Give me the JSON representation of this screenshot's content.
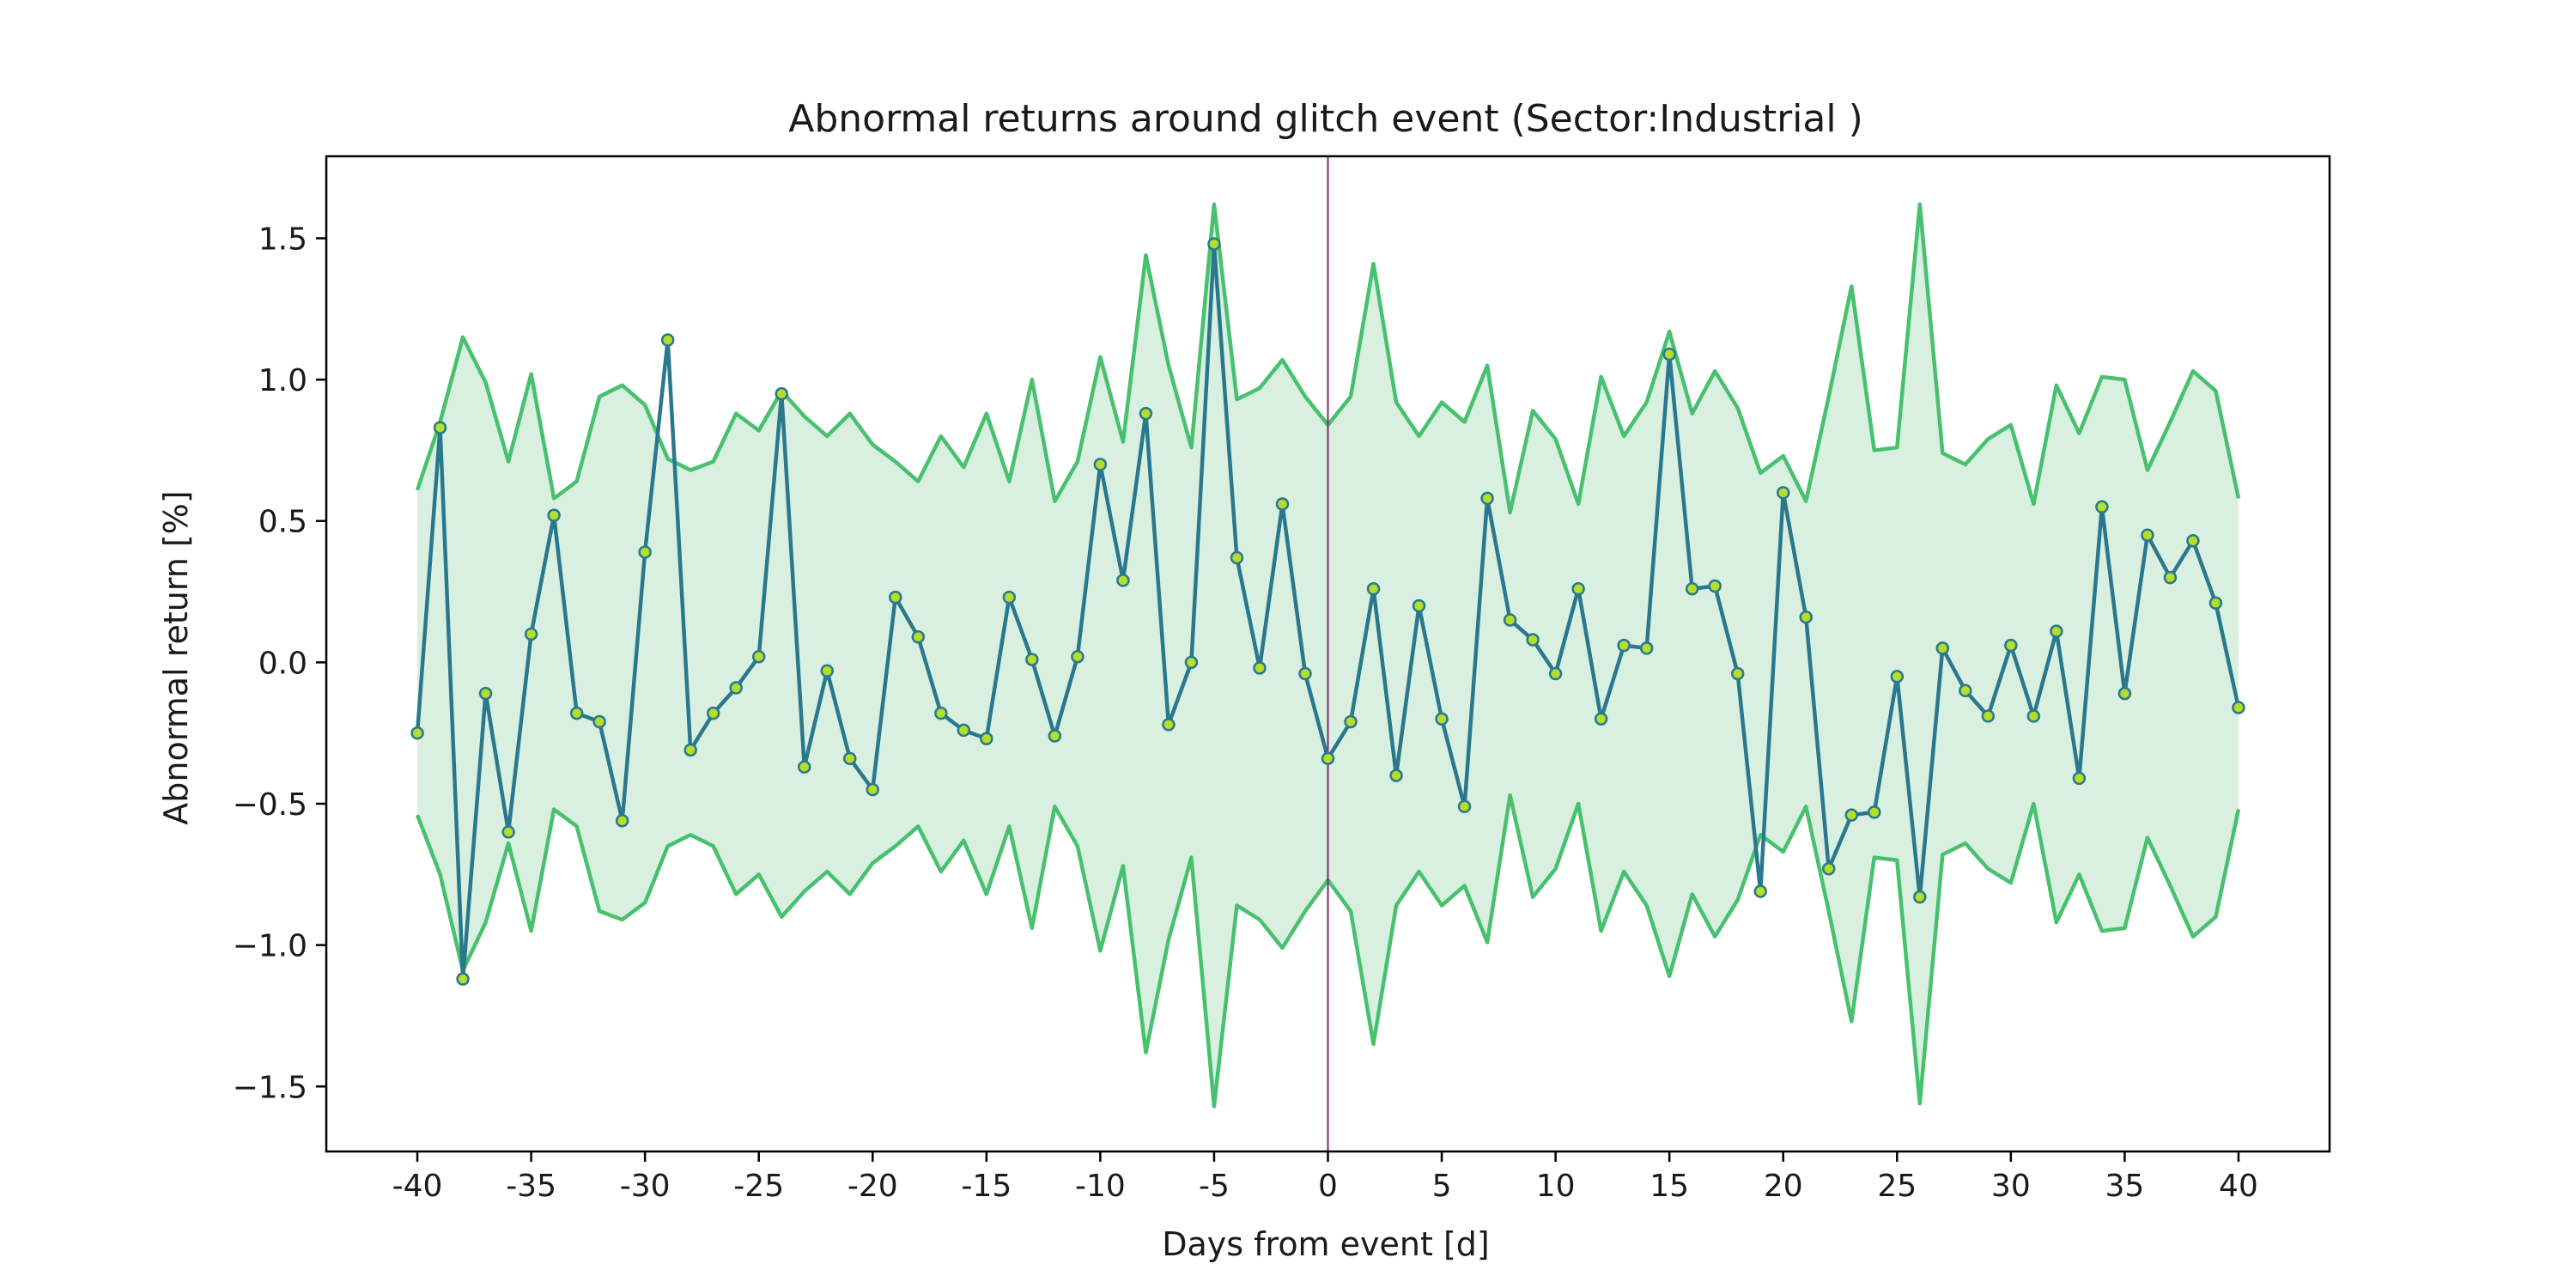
{
  "chart_data": {
    "type": "line",
    "title": "Abnormal returns around glitch event (Sector:Industrial )",
    "xlabel": "Days from event [d]",
    "ylabel": "Abnormal return [%]",
    "xlim": [
      -44,
      44
    ],
    "ylim": [
      -1.73,
      1.79
    ],
    "xticks": [
      -40,
      -35,
      -30,
      -25,
      -20,
      -15,
      -10,
      -5,
      0,
      5,
      10,
      15,
      20,
      25,
      30,
      35,
      40
    ],
    "yticks": [
      -1.5,
      -1.0,
      -0.5,
      0.0,
      0.5,
      1.0,
      1.5
    ],
    "grid": false,
    "event_line_x": 0,
    "x": [
      -40,
      -39,
      -38,
      -37,
      -36,
      -35,
      -34,
      -33,
      -32,
      -31,
      -30,
      -29,
      -28,
      -27,
      -26,
      -25,
      -24,
      -23,
      -22,
      -21,
      -20,
      -19,
      -18,
      -17,
      -16,
      -15,
      -14,
      -13,
      -12,
      -11,
      -10,
      -9,
      -8,
      -7,
      -6,
      -5,
      -4,
      -3,
      -2,
      -1,
      0,
      1,
      2,
      3,
      4,
      5,
      6,
      7,
      8,
      9,
      10,
      11,
      12,
      13,
      14,
      15,
      16,
      17,
      18,
      19,
      20,
      21,
      22,
      23,
      24,
      25,
      26,
      27,
      28,
      29,
      30,
      31,
      32,
      33,
      34,
      35,
      36,
      37,
      38,
      39,
      40
    ],
    "series": [
      {
        "type": "line",
        "values": [
          -0.25,
          0.83,
          -1.12,
          -0.11,
          -0.6,
          0.1,
          0.52,
          -0.18,
          -0.21,
          -0.56,
          0.39,
          1.14,
          -0.31,
          -0.18,
          -0.09,
          0.02,
          0.95,
          -0.37,
          -0.03,
          -0.34,
          -0.45,
          0.23,
          0.09,
          -0.18,
          -0.24,
          -0.27,
          0.23,
          0.01,
          -0.26,
          0.02,
          0.7,
          0.29,
          0.88,
          -0.22,
          0.0,
          1.48,
          0.37,
          -0.02,
          0.56,
          -0.04,
          -0.34,
          -0.21,
          0.26,
          -0.4,
          0.2,
          -0.2,
          -0.51,
          0.58,
          0.15,
          0.08,
          -0.04,
          0.26,
          -0.2,
          0.06,
          0.05,
          1.09,
          0.26,
          0.27,
          -0.04,
          -0.81,
          0.6,
          0.16,
          -0.73,
          -0.54,
          -0.53,
          -0.05,
          -0.83,
          0.05,
          -0.1,
          -0.19,
          0.06,
          -0.19,
          0.11,
          -0.41,
          0.55,
          -0.11,
          0.45,
          0.3,
          0.43,
          0.21,
          -0.16
        ],
        "color": "#2a788e",
        "marker_color": "#b5de2b"
      },
      {
        "type": "band",
        "upper": [
          0.61,
          0.85,
          1.15,
          0.99,
          0.71,
          1.02,
          0.58,
          0.64,
          0.94,
          0.98,
          0.91,
          0.72,
          0.68,
          0.71,
          0.88,
          0.82,
          0.96,
          0.87,
          0.8,
          0.88,
          0.77,
          0.71,
          0.64,
          0.8,
          0.69,
          0.88,
          0.64,
          1.0,
          0.57,
          0.71,
          1.08,
          0.78,
          1.44,
          1.05,
          0.76,
          1.62,
          0.93,
          0.97,
          1.07,
          0.94,
          0.84,
          0.94,
          1.41,
          0.92,
          0.8,
          0.92,
          0.85,
          1.05,
          0.53,
          0.89,
          0.79,
          0.56,
          1.01,
          0.8,
          0.92,
          1.17,
          0.88,
          1.03,
          0.9,
          0.67,
          0.73,
          0.57,
          0.94,
          1.33,
          0.75,
          0.76,
          1.62,
          0.74,
          0.7,
          0.79,
          0.84,
          0.56,
          0.98,
          0.81,
          1.01,
          1.0,
          0.68,
          0.85,
          1.03,
          0.96,
          0.58
        ],
        "lower": [
          -0.54,
          -0.75,
          -1.09,
          -0.92,
          -0.64,
          -0.95,
          -0.52,
          -0.58,
          -0.88,
          -0.91,
          -0.85,
          -0.65,
          -0.61,
          -0.65,
          -0.82,
          -0.75,
          -0.9,
          -0.81,
          -0.74,
          -0.82,
          -0.71,
          -0.65,
          -0.58,
          -0.74,
          -0.63,
          -0.82,
          -0.58,
          -0.94,
          -0.51,
          -0.65,
          -1.02,
          -0.72,
          -1.38,
          -0.98,
          -0.69,
          -1.57,
          -0.86,
          -0.91,
          -1.01,
          -0.88,
          -0.77,
          -0.88,
          -1.35,
          -0.86,
          -0.74,
          -0.86,
          -0.79,
          -0.99,
          -0.47,
          -0.83,
          -0.73,
          -0.5,
          -0.95,
          -0.74,
          -0.86,
          -1.11,
          -0.82,
          -0.97,
          -0.84,
          -0.61,
          -0.67,
          -0.51,
          -0.88,
          -1.27,
          -0.69,
          -0.7,
          -1.56,
          -0.68,
          -0.64,
          -0.73,
          -0.78,
          -0.5,
          -0.92,
          -0.75,
          -0.95,
          -0.94,
          -0.62,
          -0.79,
          -0.97,
          -0.9,
          -0.52
        ],
        "line_color": "#47c16e",
        "fill_color": "#d9f0e1"
      }
    ],
    "colors": {
      "event_line": "#7b2a6a",
      "axes": "#000000"
    }
  }
}
